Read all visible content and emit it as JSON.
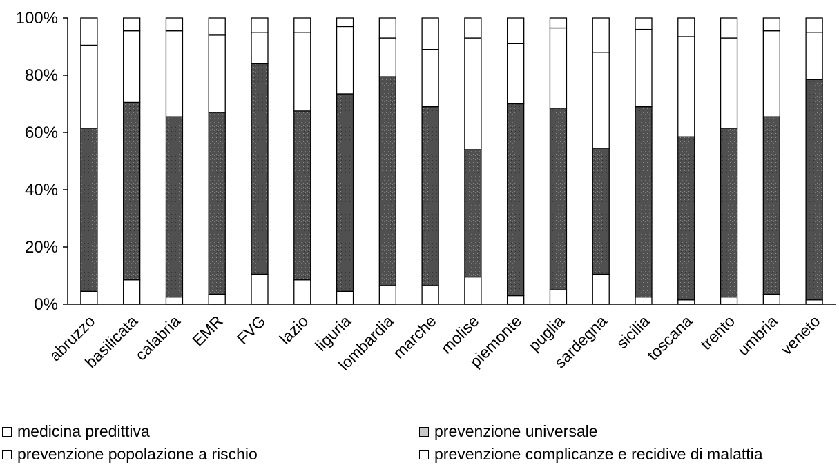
{
  "chart_data": {
    "type": "bar",
    "stacked": true,
    "normalized": true,
    "title": "",
    "xlabel": "",
    "ylabel": "",
    "ylim": [
      0,
      100
    ],
    "yticks": [
      "0%",
      "20%",
      "40%",
      "60%",
      "80%",
      "100%"
    ],
    "categories": [
      "abruzzo",
      "basilicata",
      "calabria",
      "EMR",
      "FVG",
      "lazio",
      "liguria",
      "lombardia",
      "marche",
      "molise",
      "piemonte",
      "puglia",
      "sardegna",
      "sicilia",
      "toscana",
      "trento",
      "umbria",
      "veneto"
    ],
    "series": [
      {
        "name": "medicina predittiva",
        "color": "#ffffff",
        "values": [
          4.5,
          8.5,
          2.5,
          3.5,
          10.5,
          8.5,
          4.5,
          6.5,
          6.5,
          9.5,
          3,
          5,
          10.5,
          2.5,
          1.5,
          2.5,
          3.5,
          1.5
        ]
      },
      {
        "name": "prevenzione universale",
        "color": "#555555",
        "values": [
          57,
          62,
          63,
          63.5,
          73.5,
          59,
          69,
          73,
          62.5,
          44.5,
          67,
          63.5,
          44,
          66.5,
          57,
          59,
          62,
          77
        ]
      },
      {
        "name": "prevenzione popolazione a rischio",
        "color": "#ffffff",
        "values": [
          29,
          25,
          30,
          27,
          11,
          27.5,
          23.5,
          13.5,
          20,
          39,
          21,
          28,
          33.5,
          27,
          35,
          31.5,
          30,
          16.5
        ]
      },
      {
        "name": "prevenzione complicanze e recidive di malattia",
        "color": "#ffffff",
        "values": [
          9.5,
          4.5,
          4.5,
          6,
          5,
          5,
          3,
          7,
          11,
          7,
          9,
          3.5,
          12,
          4,
          6.5,
          7,
          4.5,
          5
        ]
      }
    ],
    "legend": [
      {
        "label": "medicina predittiva",
        "swatch": "#ffffff"
      },
      {
        "label": "prevenzione universale",
        "swatch": "#c8c8c8"
      },
      {
        "label": "prevenzione popolazione a rischio",
        "swatch": "#ffffff"
      },
      {
        "label": "prevenzione complicanze e recidive di malattia",
        "swatch": "#ffffff"
      }
    ],
    "legend_position": "bottom",
    "grid": false
  }
}
